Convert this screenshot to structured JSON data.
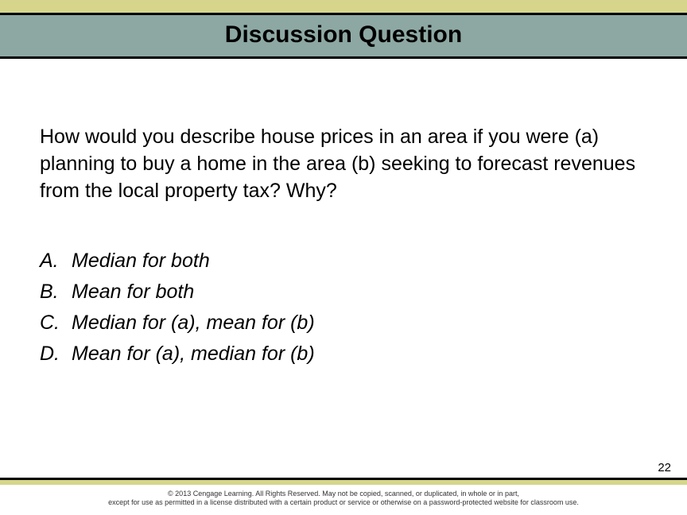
{
  "colors": {
    "yellow_bar": "#d6d58b",
    "title_band": "#8da8a3",
    "border": "#000000",
    "text": "#000000",
    "background": "#ffffff"
  },
  "typography": {
    "title_fontsize": 30,
    "body_fontsize": 25,
    "pagenum_fontsize": 15,
    "copyright_fontsize": 9,
    "title_weight": "bold",
    "options_style": "italic"
  },
  "title": "Discussion Question",
  "question": "How would you describe house prices in an area if you were (a) planning to buy a home in the area (b) seeking to forecast revenues from the local property tax? Why?",
  "options": [
    {
      "letter": "A.",
      "text": "Median for both"
    },
    {
      "letter": "B.",
      "text": "Mean for both"
    },
    {
      "letter": "C.",
      "text": "Median for (a), mean for (b)"
    },
    {
      "letter": "D.",
      "text": "Mean for (a), median for (b)"
    }
  ],
  "page_number": "22",
  "copyright_line1": "© 2013 Cengage Learning. All Rights Reserved. May not be copied, scanned, or duplicated, in whole or in part,",
  "copyright_line2": "except for use as permitted in a license distributed with a certain product or service or otherwise on a password-protected website for classroom use."
}
